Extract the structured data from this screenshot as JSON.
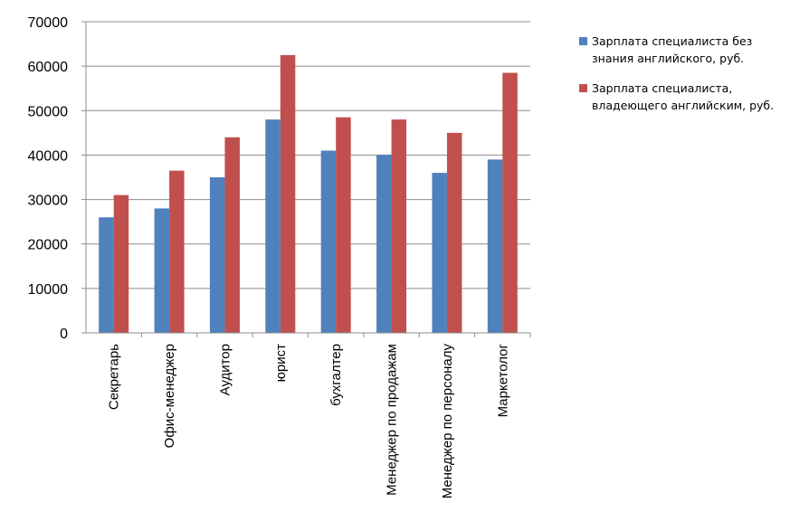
{
  "chart_data": {
    "type": "bar",
    "categories": [
      "Секретарь",
      "Офис-менеджер",
      "Аудитор",
      "юрист",
      "бухгалтер",
      "Менеджер по продажам",
      "Менеджер по персоналу",
      "Маркетолог"
    ],
    "series": [
      {
        "name": "Зарплата специалиста без знания английского, руб.",
        "color": "#4F81BD",
        "values": [
          26000,
          28000,
          35000,
          48000,
          41000,
          40000,
          36000,
          39000
        ]
      },
      {
        "name": "Зарплата специалиста, владеющего английским, руб.",
        "color": "#C0504D",
        "values": [
          31000,
          36500,
          44000,
          62500,
          48500,
          48000,
          45000,
          58500
        ]
      }
    ],
    "yticks": [
      "0",
      "10000",
      "20000",
      "30000",
      "40000",
      "50000",
      "60000",
      "70000"
    ],
    "ylim": [
      0,
      70000
    ],
    "grid": true,
    "legend_position": "right",
    "title": "",
    "xlabel": "",
    "ylabel": ""
  }
}
